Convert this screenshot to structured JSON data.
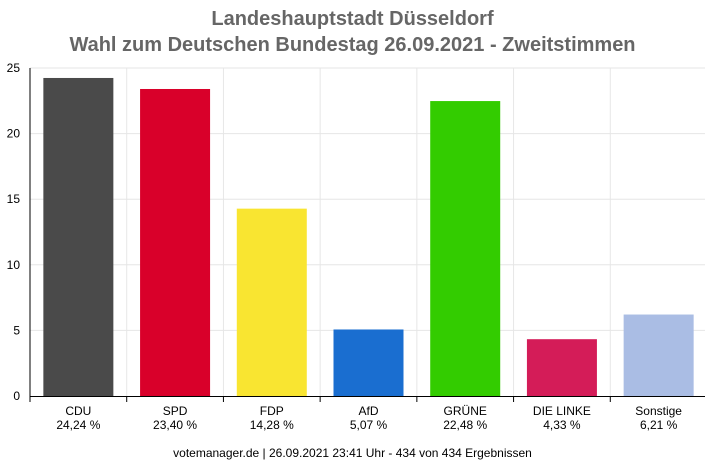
{
  "chart_data": {
    "type": "bar",
    "title": "Landeshauptstadt Düsseldorf",
    "subtitle": "Wahl zum Deutschen Bundestag 26.09.2021  - Zweitstimmen",
    "categories": [
      "CDU",
      "SPD",
      "FDP",
      "AfD",
      "GRÜNE",
      "DIE LINKE",
      "Sonstige"
    ],
    "value_labels": [
      "24,24 %",
      "23,40 %",
      "14,28 %",
      "5,07 %",
      "22,48 %",
      "4,33 %",
      "6,21 %"
    ],
    "values": [
      24.24,
      23.4,
      14.28,
      5.07,
      22.48,
      4.33,
      6.21
    ],
    "colors": [
      "#4a4a4a",
      "#d9002a",
      "#f9e531",
      "#1a6ed0",
      "#33cc00",
      "#d41c58",
      "#aabde4"
    ],
    "ylim": [
      0,
      25
    ],
    "yticks": [
      0,
      5,
      10,
      15,
      20,
      25
    ],
    "grid": true,
    "legend": "none"
  },
  "footer": "votemanager.de | 26.09.2021 23:41 Uhr - 434 von 434 Ergebnissen"
}
